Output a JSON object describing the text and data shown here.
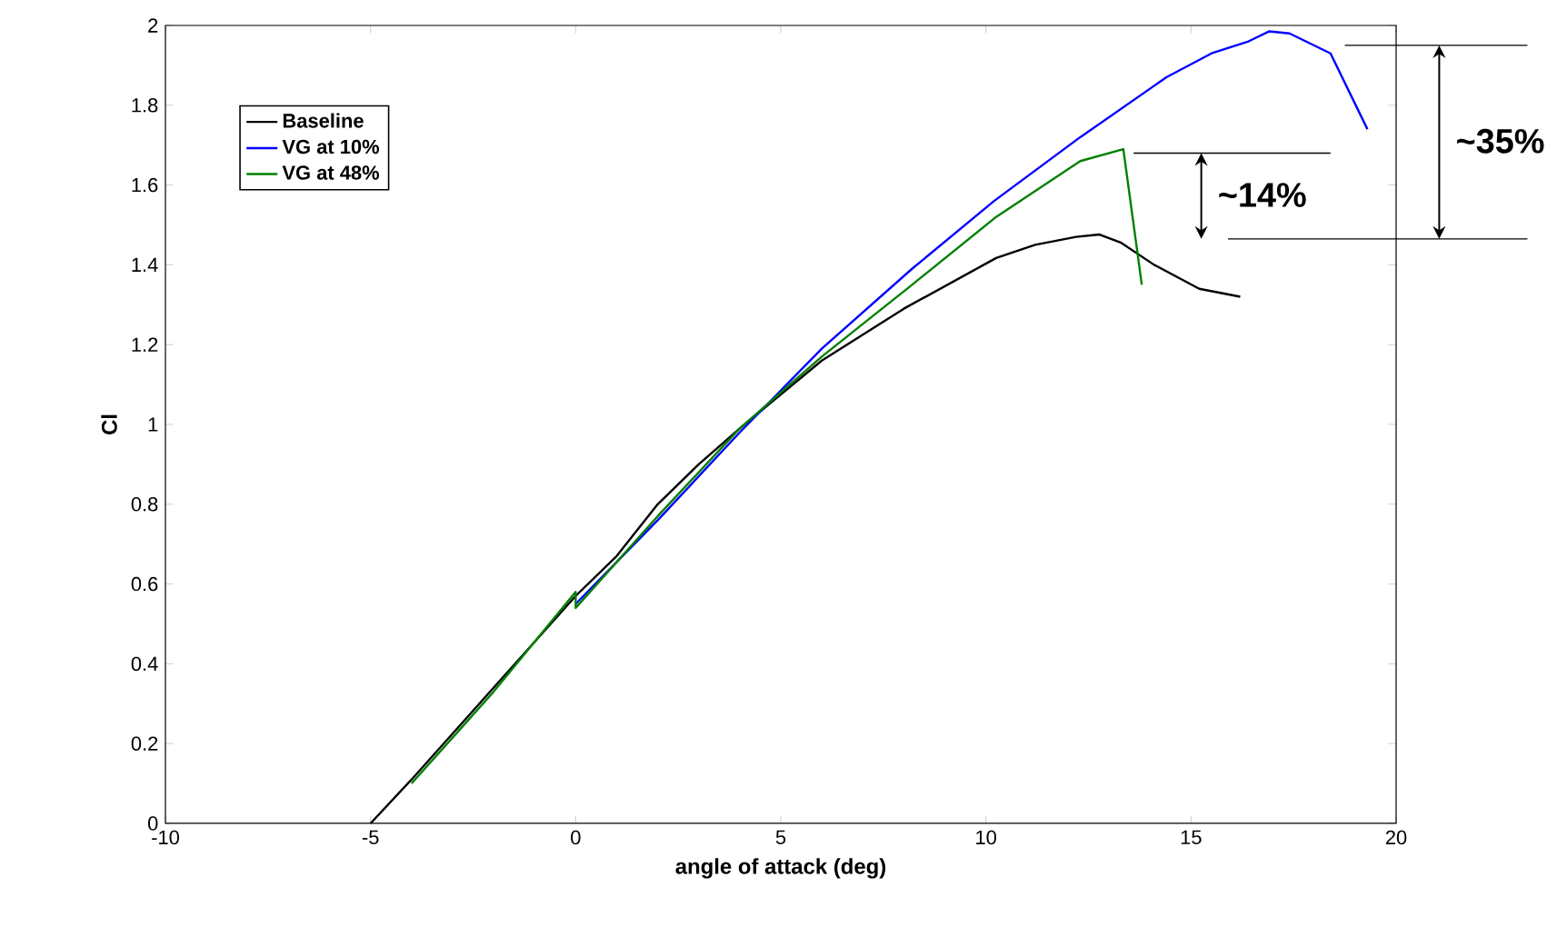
{
  "chart_data": {
    "type": "line",
    "xlabel": "angle of attack (deg)",
    "ylabel": "Cl",
    "xlim": [
      -10,
      20
    ],
    "xticks": [
      -10,
      -5,
      0,
      5,
      10,
      15,
      20
    ],
    "ylim": [
      0,
      2
    ],
    "yticks": [
      0,
      0.2,
      0.4,
      0.6,
      0.8,
      1,
      1.2,
      1.4,
      1.6,
      1.8,
      2
    ],
    "grid": false,
    "legend": "top left",
    "marker": "none",
    "line_style": "solid",
    "series": [
      {
        "name": "Baseline",
        "color": "#000000",
        "x": [
          -5,
          -4,
          -2,
          0,
          1,
          2,
          3,
          4,
          6,
          8,
          10.25,
          11.2,
          12.2,
          12.77,
          13.3,
          14.1,
          15.2,
          16.2
        ],
        "values": [
          0,
          0.11,
          0.34,
          0.57,
          0.67,
          0.8,
          0.9,
          0.99,
          1.16,
          1.29,
          1.417,
          1.45,
          1.47,
          1.476,
          1.455,
          1.4,
          1.34,
          1.32
        ]
      },
      {
        "name": "VG at 10%",
        "color": "#0000ff",
        "x": [
          0,
          2,
          4,
          6,
          8.2,
          10.2,
          12.3,
          14.4,
          15.5,
          16.4,
          16.9,
          17.4,
          18.4,
          19.3
        ],
        "values": [
          0.55,
          0.76,
          0.98,
          1.19,
          1.39,
          1.56,
          1.72,
          1.87,
          1.93,
          1.96,
          1.985,
          1.98,
          1.93,
          1.74
        ]
      },
      {
        "name": "VG at 48%",
        "color": "#008000",
        "x": [
          -4,
          -2,
          0,
          0,
          2,
          4,
          6,
          8.2,
          10.25,
          12.3,
          13.35,
          13.8
        ],
        "values": [
          0.1,
          0.33,
          0.58,
          0.54,
          0.77,
          0.99,
          1.17,
          1.35,
          1.52,
          1.66,
          1.69,
          1.35
        ]
      }
    ],
    "annotations": [
      "~35%",
      {
        "text": "~14%",
        "x": 13.35,
        "y": 1.69
      }
    ]
  }
}
